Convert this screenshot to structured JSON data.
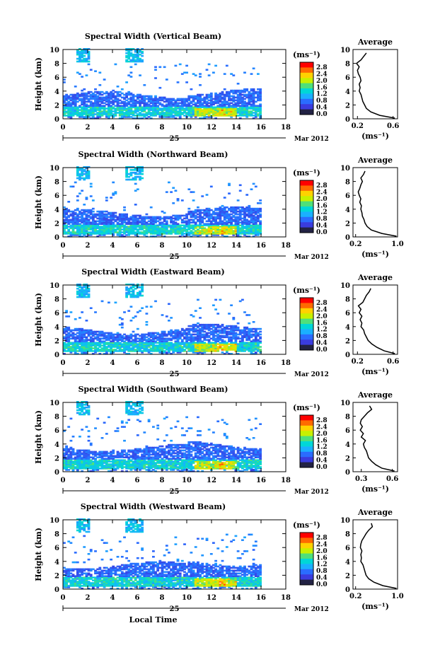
{
  "figure": {
    "x_tick_labels": [
      "0",
      "2",
      "4",
      "6",
      "8",
      "10",
      "12",
      "14",
      "16",
      "18"
    ],
    "x_tick_values": [
      0,
      2,
      4,
      6,
      8,
      10,
      12,
      14,
      16,
      18
    ],
    "date_day": "25",
    "date_month_year": "Mar 2012",
    "xlabel": "Local Time",
    "colorbar_unit": "(ms⁻¹)",
    "colorbar_labels": [
      "2.8",
      "2.4",
      "2.0",
      "1.6",
      "1.2",
      "0.8",
      "0.4",
      "0.0"
    ],
    "colorbar_colors": [
      "#ff0000",
      "#ff6a00",
      "#ffd200",
      "#c8f000",
      "#4ee07a",
      "#00d7d7",
      "#1ab0ff",
      "#2a6cff",
      "#3a3cdf",
      "#222244"
    ],
    "avg_title": "Average",
    "avg_xlabel": "(ms⁻¹)"
  },
  "chart_data": [
    {
      "type": "heatmap",
      "title": "Spectral Width (Vertical Beam)",
      "ylabel": "Height (km)",
      "y_ticks": [
        "0",
        "2",
        "4",
        "6",
        "8",
        "10"
      ],
      "xlim": [
        0,
        18
      ],
      "ylim": [
        0,
        10
      ],
      "colorbar_range": [
        0.0,
        3.0
      ],
      "profile": {
        "title": "Average",
        "xticks": [
          "0.2",
          "0.6"
        ],
        "xlim": [
          0.15,
          0.65
        ],
        "heights": [
          0.1,
          0.5,
          1,
          1.5,
          2,
          2.5,
          3,
          3.5,
          4,
          4.5,
          5,
          5.5,
          6,
          6.5,
          7,
          7.5,
          8,
          8.5,
          9,
          9.5
        ],
        "values": [
          0.62,
          0.45,
          0.35,
          0.3,
          0.28,
          0.26,
          0.25,
          0.24,
          0.22,
          0.23,
          0.22,
          0.24,
          0.23,
          0.21,
          0.2,
          0.22,
          0.19,
          0.24,
          0.27,
          0.3
        ]
      }
    },
    {
      "type": "heatmap",
      "title": "Spectral Width (Northward Beam)",
      "ylabel": "Height (km)",
      "y_ticks": [
        "0",
        "2",
        "4",
        "6",
        "8",
        "10"
      ],
      "xlim": [
        0,
        18
      ],
      "ylim": [
        0,
        10
      ],
      "colorbar_range": [
        0.0,
        3.0
      ],
      "profile": {
        "title": "Average",
        "xticks": [
          "0.2",
          "1.0"
        ],
        "xlim": [
          0.15,
          1.0
        ],
        "heights": [
          0.1,
          0.5,
          1,
          1.5,
          2,
          2.5,
          3,
          3.5,
          4,
          4.5,
          5,
          5.5,
          6,
          6.5,
          7,
          7.5,
          8,
          8.5,
          9,
          9.5
        ],
        "values": [
          0.98,
          0.7,
          0.5,
          0.42,
          0.38,
          0.36,
          0.33,
          0.32,
          0.3,
          0.31,
          0.28,
          0.3,
          0.27,
          0.25,
          0.28,
          0.3,
          0.33,
          0.3,
          0.35,
          0.38
        ]
      }
    },
    {
      "type": "heatmap",
      "title": "Spectral Width (Eastward Beam)",
      "ylabel": "Height (km)",
      "y_ticks": [
        "0",
        "2",
        "4",
        "6",
        "8",
        "10"
      ],
      "xlim": [
        0,
        18
      ],
      "ylim": [
        0,
        10
      ],
      "colorbar_range": [
        0.0,
        3.0
      ],
      "profile": {
        "title": "Average",
        "xticks": [
          "0.2",
          "0.6"
        ],
        "xlim": [
          0.15,
          0.65
        ],
        "heights": [
          0.1,
          0.5,
          1,
          1.5,
          2,
          2.5,
          3,
          3.5,
          4,
          4.5,
          5,
          5.5,
          6,
          6.5,
          7,
          7.5,
          8,
          8.5,
          9,
          9.5
        ],
        "values": [
          0.62,
          0.5,
          0.42,
          0.36,
          0.32,
          0.3,
          0.28,
          0.27,
          0.24,
          0.25,
          0.23,
          0.25,
          0.22,
          0.24,
          0.21,
          0.26,
          0.28,
          0.3,
          0.33,
          0.35
        ]
      }
    },
    {
      "type": "heatmap",
      "title": "Spectral Width (Southward Beam)",
      "ylabel": "Height (km)",
      "y_ticks": [
        "0",
        "2",
        "4",
        "6",
        "8",
        "10"
      ],
      "xlim": [
        0,
        18
      ],
      "ylim": [
        0,
        10
      ],
      "colorbar_range": [
        0.0,
        3.0
      ],
      "profile": {
        "title": "Average",
        "xticks": [
          "0.3",
          "0.6"
        ],
        "xlim": [
          0.22,
          0.65
        ],
        "heights": [
          0.1,
          0.5,
          1,
          1.5,
          2,
          2.5,
          3,
          3.5,
          4,
          4.5,
          5,
          5.5,
          6,
          6.5,
          7,
          7.5,
          8,
          8.5,
          9,
          9.5
        ],
        "values": [
          0.62,
          0.5,
          0.44,
          0.4,
          0.37,
          0.36,
          0.35,
          0.33,
          0.32,
          0.34,
          0.3,
          0.32,
          0.29,
          0.31,
          0.29,
          0.3,
          0.33,
          0.36,
          0.4,
          0.38
        ]
      }
    },
    {
      "type": "heatmap",
      "title": "Spectral Width (Westward Beam)",
      "ylabel": "Height (km)",
      "y_ticks": [
        "0",
        "2",
        "4",
        "6",
        "8",
        "10"
      ],
      "xlim": [
        0,
        18
      ],
      "ylim": [
        0,
        10
      ],
      "colorbar_range": [
        0.0,
        3.0
      ],
      "profile": {
        "title": "Average",
        "xticks": [
          "0.2",
          "1.0"
        ],
        "xlim": [
          0.15,
          1.0
        ],
        "heights": [
          0.1,
          0.5,
          1,
          1.5,
          2,
          2.5,
          3,
          3.5,
          4,
          4.5,
          5,
          5.5,
          6,
          6.5,
          7,
          7.5,
          8,
          8.5,
          9,
          9.5
        ],
        "values": [
          0.98,
          0.72,
          0.55,
          0.45,
          0.4,
          0.38,
          0.36,
          0.34,
          0.3,
          0.31,
          0.3,
          0.32,
          0.29,
          0.3,
          0.32,
          0.36,
          0.4,
          0.45,
          0.52,
          0.5
        ]
      }
    }
  ]
}
